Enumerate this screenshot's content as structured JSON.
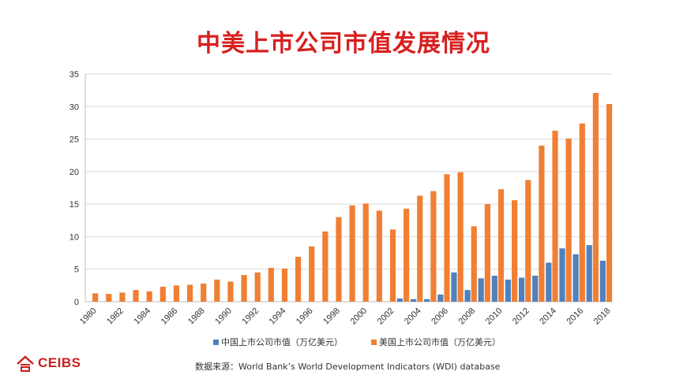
{
  "title": "中美上市公司市值发展情况",
  "source": "数据来源：World Bank’s World Development Indicators (WDI) database",
  "logo": {
    "text": "CEIBS",
    "icon": "ceibs-logo-icon"
  },
  "colors": {
    "title": "#d7201f",
    "china": "#4f81bd",
    "usa": "#f07f34",
    "grid": "#d9d9d9",
    "logo": "#c8201e"
  },
  "chart_data": {
    "type": "bar",
    "categories": [
      "1980",
      "1981",
      "1982",
      "1983",
      "1984",
      "1985",
      "1986",
      "1987",
      "1988",
      "1989",
      "1990",
      "1991",
      "1992",
      "1993",
      "1994",
      "1995",
      "1996",
      "1997",
      "1998",
      "1999",
      "2000",
      "2001",
      "2002",
      "2003",
      "2004",
      "2005",
      "2006",
      "2007",
      "2008",
      "2009",
      "2010",
      "2011",
      "2012",
      "2013",
      "2014",
      "2015",
      "2016",
      "2017",
      "2018"
    ],
    "xtick_labels": [
      "1980",
      "1982",
      "1984",
      "1986",
      "1988",
      "1990",
      "1992",
      "1994",
      "1996",
      "1998",
      "2000",
      "2002",
      "2004",
      "2006",
      "2008",
      "2010",
      "2012",
      "2014",
      "2016",
      "2018"
    ],
    "series": [
      {
        "name": "中国上市公司市值（万亿美元）",
        "color": "#4f81bd",
        "values": [
          0,
          0,
          0,
          0,
          0,
          0,
          0,
          0,
          0,
          0,
          0,
          0,
          0,
          0,
          0,
          0,
          0,
          0,
          0,
          0,
          0,
          0,
          0,
          0.5,
          0.4,
          0.4,
          1.1,
          4.5,
          1.8,
          3.6,
          4.0,
          3.4,
          3.7,
          4.0,
          6.0,
          8.2,
          7.3,
          8.7,
          6.3
        ]
      },
      {
        "name": "美国上市公司市值（万亿美元）",
        "color": "#f07f34",
        "values": [
          1.3,
          1.2,
          1.4,
          1.8,
          1.6,
          2.3,
          2.5,
          2.6,
          2.8,
          3.4,
          3.1,
          4.1,
          4.5,
          5.2,
          5.1,
          6.9,
          8.5,
          10.8,
          13.0,
          14.8,
          15.1,
          14.0,
          11.1,
          14.3,
          16.3,
          17.0,
          19.6,
          19.9,
          11.6,
          15.0,
          17.3,
          15.6,
          18.7,
          24.0,
          26.3,
          25.1,
          27.4,
          32.1,
          30.4
        ]
      }
    ],
    "yticks": [
      0,
      5,
      10,
      15,
      20,
      25,
      30,
      35
    ],
    "ylim": [
      0,
      35
    ],
    "grid": "horizontal",
    "legend_position": "bottom"
  }
}
